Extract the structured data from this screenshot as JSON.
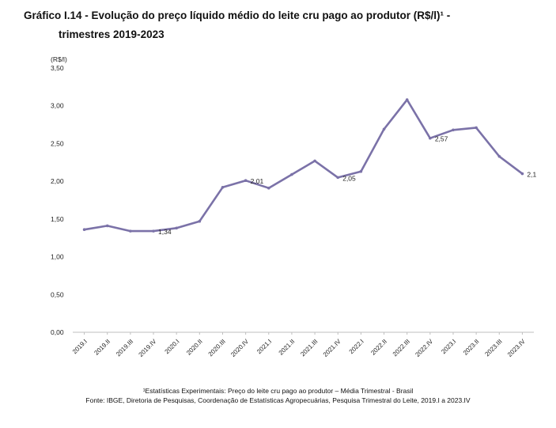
{
  "title": {
    "line1": "Gráfico I.14 - Evolução do preço líquido médio do leite cru pago ao produtor (R$/l)¹ -",
    "line2": "trimestres 2019-2023"
  },
  "footnotes": {
    "note": "¹Estatísticas Experimentais: Preço do leite cru pago ao produtor – Média Trimestral - Brasil",
    "source": "Fonte: IBGE, Diretoria de Pesquisas, Coordenação de Estatísticas Agropecuárias, Pesquisa Trimestral do Leite, 2019.I a 2023.IV"
  },
  "colors": {
    "line": "#7b72a8",
    "axis": "#bfbfbf",
    "text": "#222222"
  },
  "chart_data": {
    "type": "line",
    "ylabel": "(R$/l)",
    "ylim": [
      0,
      3.5
    ],
    "yticks": [
      "0,00",
      "0,50",
      "1,00",
      "1,50",
      "2,00",
      "2,50",
      "3,00",
      "3,50"
    ],
    "grid": false,
    "categories": [
      "2019.I",
      "2019.II",
      "2019.III",
      "2019.IV",
      "2020.I",
      "2020.II",
      "2020.III",
      "2020.IV",
      "2021.I",
      "2021.II",
      "2021.III",
      "2021.IV",
      "2022.I",
      "2022.II",
      "2022.III",
      "2022.IV",
      "2023.I",
      "2023.II",
      "2023.III",
      "2023.IV"
    ],
    "series": [
      {
        "values": [
          1.36,
          1.41,
          1.34,
          1.34,
          1.38,
          1.47,
          1.92,
          2.01,
          1.91,
          2.09,
          2.27,
          2.05,
          2.13,
          2.69,
          3.08,
          2.57,
          2.68,
          2.71,
          2.33,
          2.1
        ]
      }
    ],
    "data_labels": [
      {
        "index": 3,
        "text": "1,34"
      },
      {
        "index": 7,
        "text": "2,01"
      },
      {
        "index": 11,
        "text": "2,05"
      },
      {
        "index": 15,
        "text": "2,57"
      },
      {
        "index": 19,
        "text": "2,1"
      }
    ]
  }
}
